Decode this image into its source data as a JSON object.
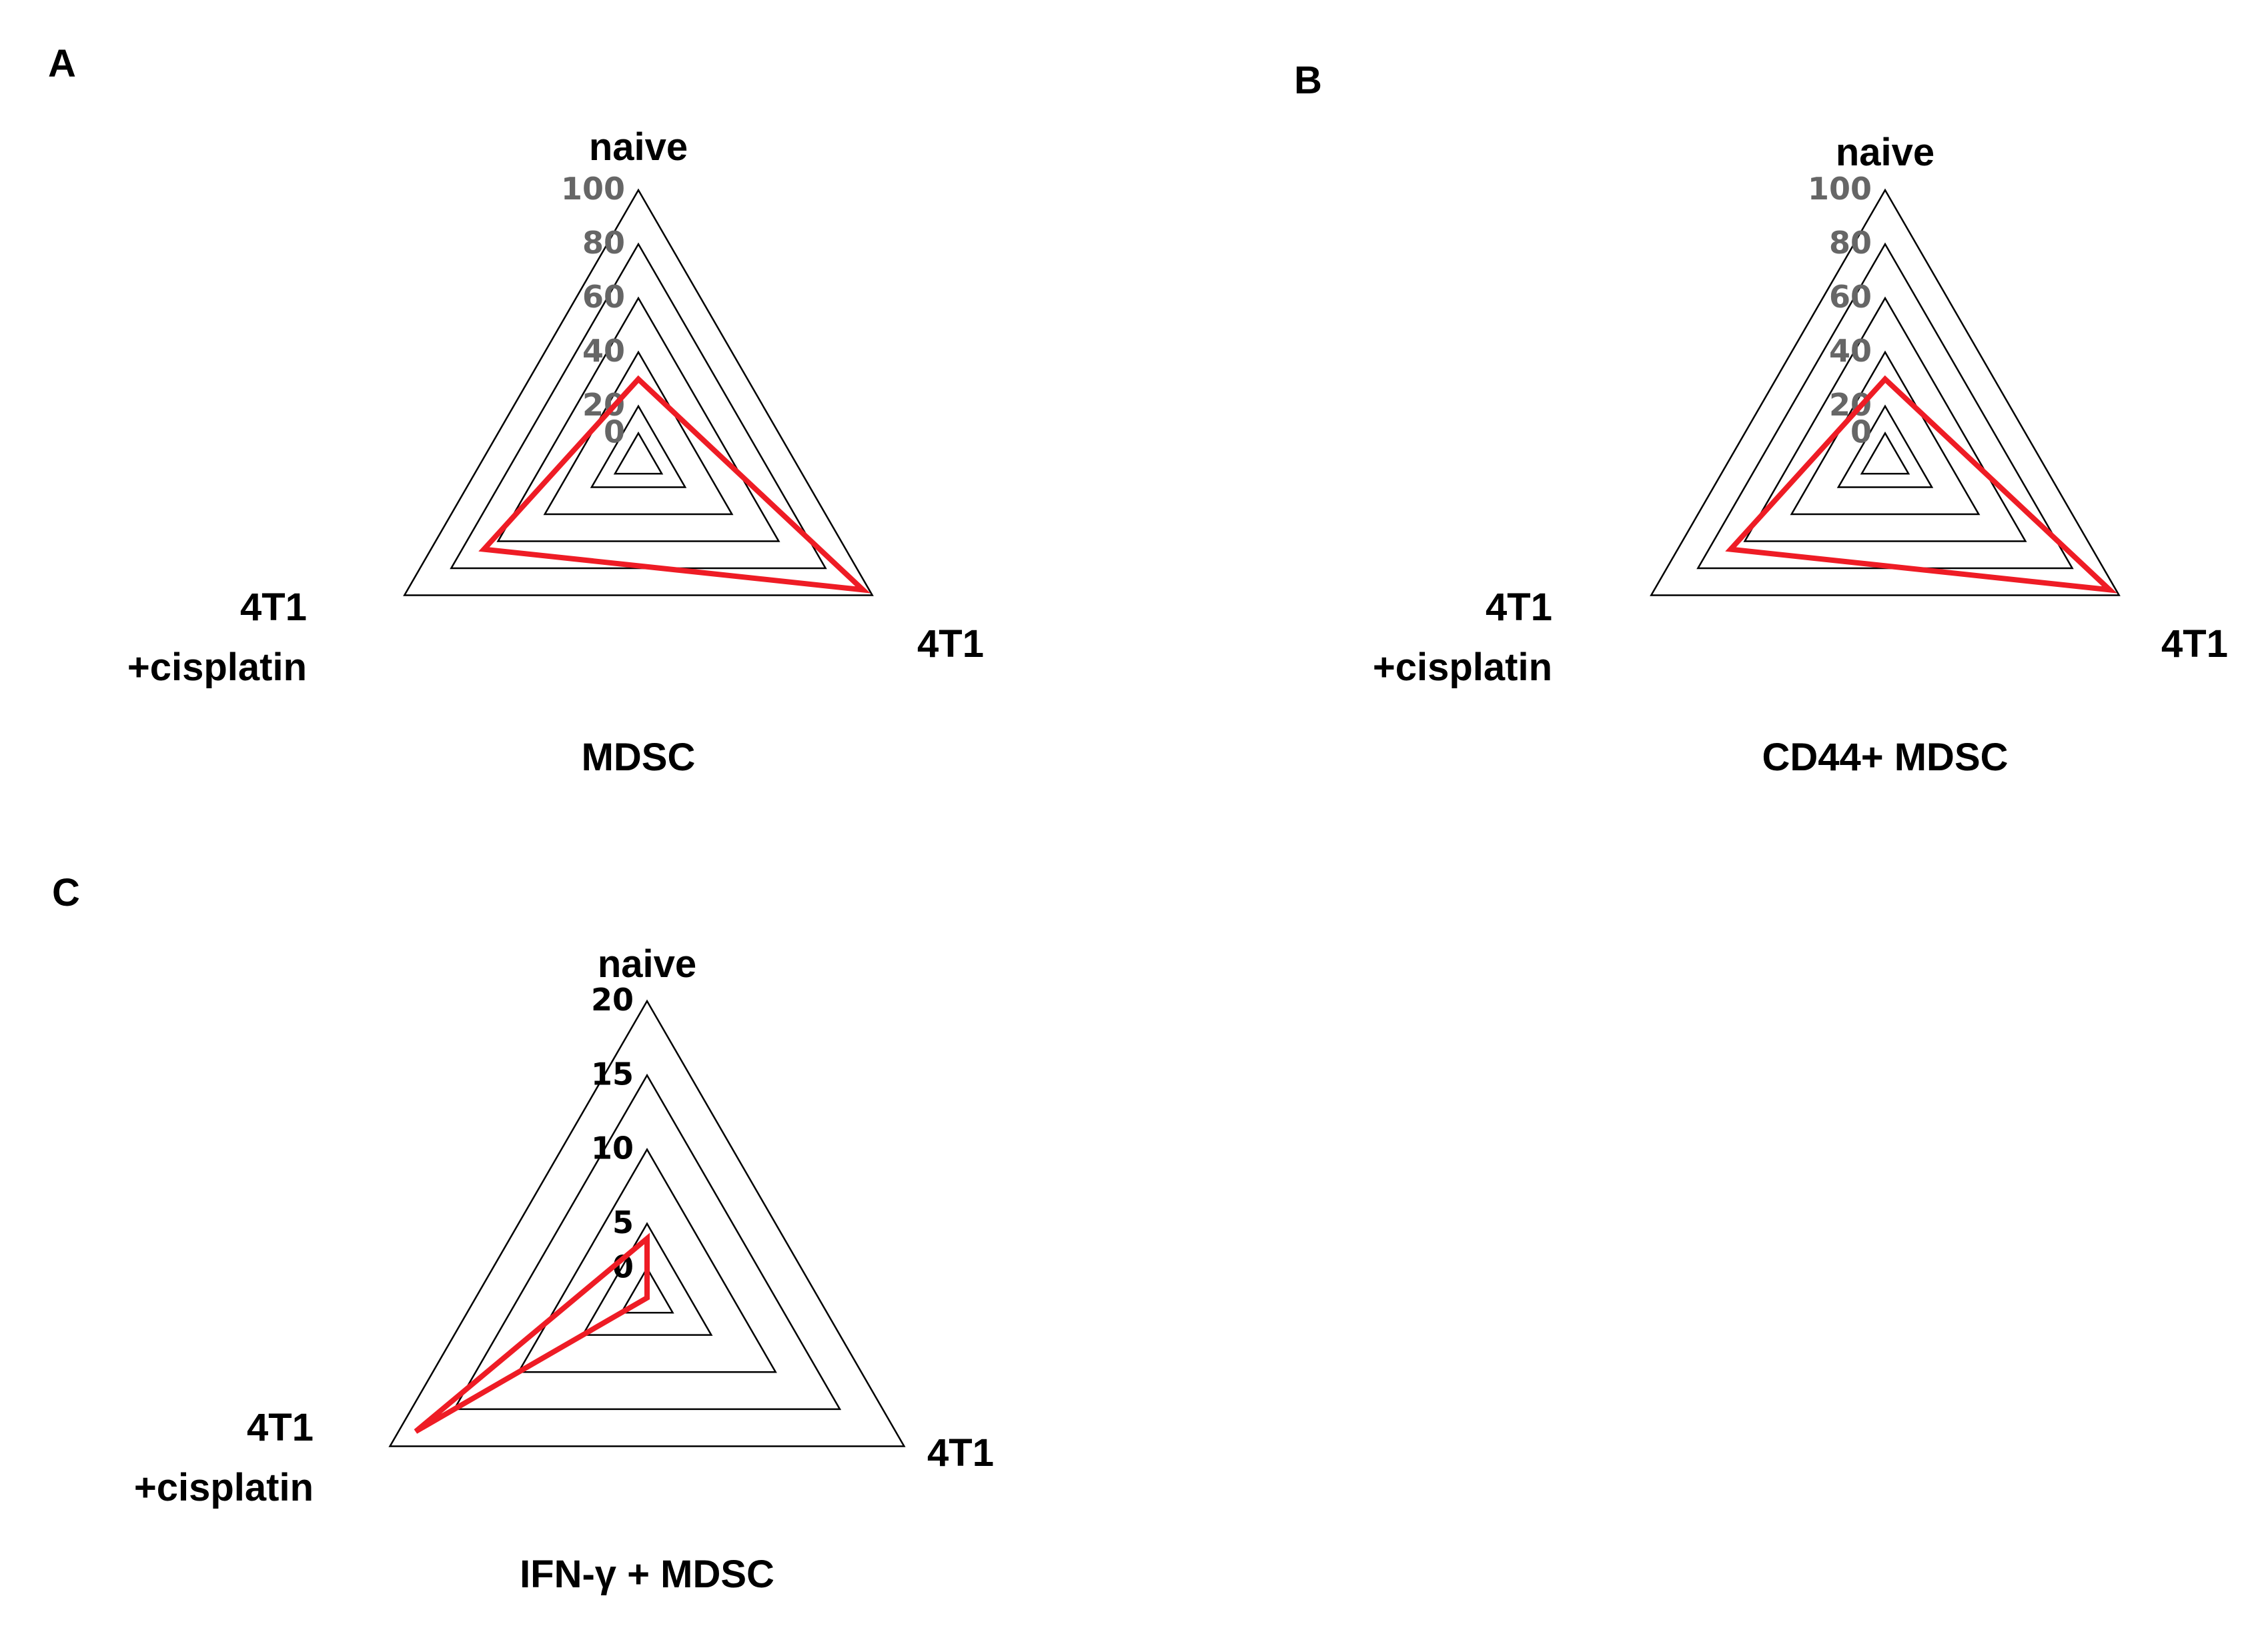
{
  "colors": {
    "series": "#ee1c25",
    "grid": "#000000",
    "tick_gray": "#666666",
    "tick_black": "#000000",
    "background": "#ffffff"
  },
  "chart_data": [
    {
      "panel": "A",
      "type": "radar",
      "categories": [
        "naive",
        "4T1",
        "4T1\n+cisplatin"
      ],
      "axis_ticks": [
        "0",
        "20",
        "40",
        "60",
        "80",
        "100"
      ],
      "ylim": [
        0,
        100
      ],
      "tick_color": "gray",
      "series": [
        {
          "name": "MDSC",
          "values": [
            30,
            96,
            66
          ]
        }
      ],
      "caption": "MDSC"
    },
    {
      "panel": "B",
      "type": "radar",
      "categories": [
        "naive",
        "4T1",
        "4T1\n+cisplatin"
      ],
      "axis_ticks": [
        "0",
        "20",
        "40",
        "60",
        "80",
        "100"
      ],
      "ylim": [
        0,
        100
      ],
      "tick_color": "gray",
      "series": [
        {
          "name": "CD44+ MDSC",
          "values": [
            30,
            96,
            66
          ]
        }
      ],
      "caption": "CD44+ MDSC"
    },
    {
      "panel": "C",
      "type": "radar",
      "categories": [
        "naive",
        "4T1",
        "4T1\n+cisplatin"
      ],
      "axis_ticks": [
        "0",
        "5",
        "10",
        "15",
        "20"
      ],
      "ylim": [
        0,
        20
      ],
      "tick_color": "black",
      "series": [
        {
          "name": "IFN-γ + MDSC",
          "values": [
            4,
            0,
            18
          ]
        }
      ],
      "caption": "IFN-γ + MDSC"
    }
  ]
}
